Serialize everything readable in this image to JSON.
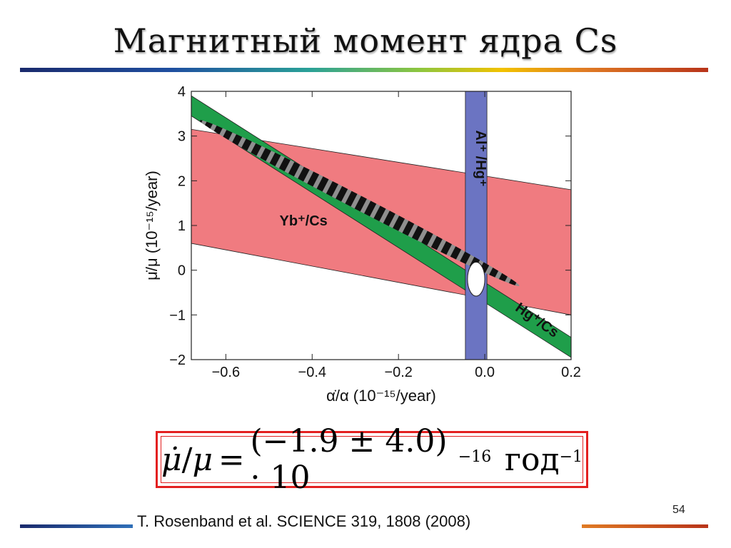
{
  "slide": {
    "title": "Магнитный момент ядра Cs",
    "page_number": "54",
    "citation": "T. Rosenband et al. SCIENCE 319, 1808 (2008)"
  },
  "formula": {
    "lhs_num": "μ̇",
    "lhs_den": "μ",
    "equals": "=",
    "value": "(−1.9 ± 4.0) · 10",
    "exponent": "−16",
    "unit": "год",
    "unit_exponent": "−1"
  },
  "chart_data": {
    "type": "area",
    "title": "",
    "xlabel": "α̇/α (10⁻¹⁵/year)",
    "ylabel": "μ̇/μ (10⁻¹⁵/year)",
    "xlim": [
      -0.68,
      0.2
    ],
    "ylim": [
      -2,
      4
    ],
    "xticks": [
      -0.6,
      -0.4,
      -0.2,
      0.0,
      0.2
    ],
    "xtick_labels": [
      "−0.6",
      "−0.4",
      "−0.2",
      "0.0",
      "0.2"
    ],
    "yticks": [
      -2,
      -1,
      0,
      1,
      2,
      3,
      4
    ],
    "ytick_labels": [
      "−2",
      "−1",
      "0",
      "1",
      "2",
      "3",
      "4"
    ],
    "grid": false,
    "constraints": [
      {
        "name": "Yb⁺/Cs",
        "kind": "band",
        "color": "#f07b80",
        "upper": [
          [
            -0.68,
            3.15
          ],
          [
            0.2,
            1.8
          ]
        ],
        "lower": [
          [
            -0.68,
            0.6
          ],
          [
            0.2,
            -1.0
          ]
        ]
      },
      {
        "name": "Hg⁺/Cs",
        "kind": "band",
        "color": "#1f9e4a",
        "upper": [
          [
            -0.68,
            3.9
          ],
          [
            0.2,
            -1.5
          ]
        ],
        "lower": [
          [
            -0.68,
            3.45
          ],
          [
            0.2,
            -1.95
          ]
        ]
      },
      {
        "name": "Al⁺/Hg⁺",
        "kind": "vertical_band",
        "color": "#6b74c2",
        "x_range": [
          -0.045,
          0.005
        ]
      }
    ],
    "combined_region": {
      "kind": "hatched_ellipse",
      "center": [
        -0.28,
        1.5
      ],
      "endpoints": [
        [
          -0.66,
          3.35
        ],
        [
          0.08,
          -0.35
        ]
      ],
      "half_width": 0.16
    },
    "result_ellipse": {
      "center": [
        -0.02,
        -0.2
      ],
      "rx": 0.02,
      "ry": 0.38,
      "color": "#ffffff"
    },
    "annotations": [
      {
        "text": "Yb⁺/Cs",
        "x": -0.42,
        "y": 1.0
      },
      {
        "text": "Al⁺ /Hg⁺",
        "x": -0.02,
        "y": 2.5,
        "rotation": 90
      },
      {
        "text": "Hg⁺/Cs",
        "x": 0.115,
        "y": -1.2,
        "rotation": 35
      }
    ]
  }
}
